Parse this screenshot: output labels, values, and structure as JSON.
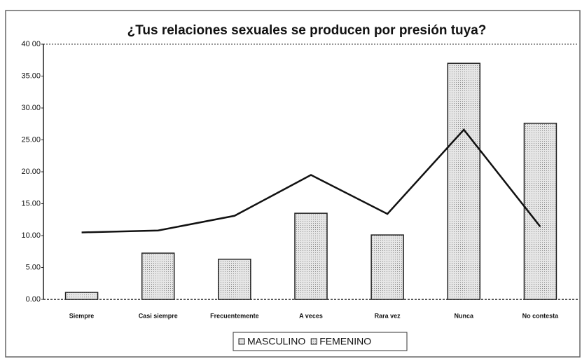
{
  "chart_data": {
    "type": "bar-line",
    "title": "¿Tus relaciones sexuales se producen por presión tuya?",
    "categories": [
      "Siempre",
      "Casi siempre",
      "Frecuentemente",
      "A veces",
      "Rara vez",
      "Nunca",
      "No contesta"
    ],
    "series": [
      {
        "name": "MASCULINO",
        "type": "bar",
        "color": "#d4d4d4",
        "values": [
          1.1,
          7.25,
          6.3,
          13.5,
          10.1,
          37.0,
          27.6
        ]
      },
      {
        "name": "FEMENINO",
        "type": "line",
        "color": "#111111",
        "values": [
          10.5,
          10.8,
          13.1,
          19.5,
          13.4,
          26.6,
          11.4
        ]
      }
    ],
    "ylim": [
      0,
      40
    ],
    "yticks": [
      {
        "value": 0,
        "label": "0.00"
      },
      {
        "value": 5,
        "label": "5.00"
      },
      {
        "value": 10,
        "label": "10.00"
      },
      {
        "value": 15,
        "label": "15.00"
      },
      {
        "value": 20,
        "label": "20.00"
      },
      {
        "value": 25,
        "label": "25.00"
      },
      {
        "value": 30,
        "label": "30.00"
      },
      {
        "value": 35,
        "label": "35.00"
      },
      {
        "value": 40,
        "label": "40 00"
      }
    ],
    "legend": "bottom"
  }
}
